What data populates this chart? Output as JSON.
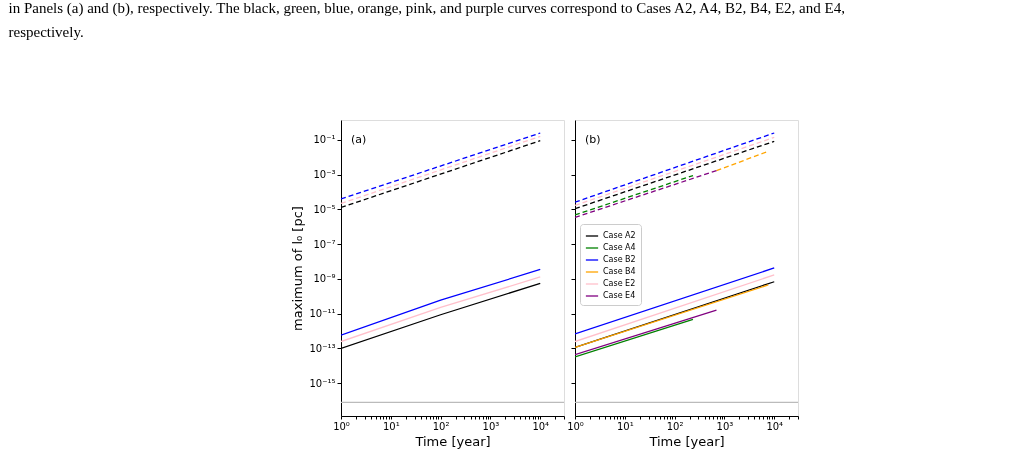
{
  "chart_data": [
    {
      "type": "line",
      "xlabel": "Time [year]",
      "ylabel": "maximum of l₀ [pc]",
      "log": "xy",
      "grid": false,
      "legend": false,
      "annotations": [
        "(a)",
        "in Panels (a) and (b), respectively.  The black, green, blue, orange, pink, and purple curves correspond to Cases A2, A4, B2, B4, E2, and E4,",
        "respectively."
      ],
      "xlim": [
        1,
        30000
      ],
      "ylim": [
        1.3e-17,
        1.4
      ],
      "xticks": [
        {
          "value": 1,
          "label": "10⁰"
        },
        {
          "value": 2,
          "label": null
        },
        {
          "value": 3,
          "label": null
        },
        {
          "value": 4,
          "label": null
        },
        {
          "value": 5,
          "label": null
        },
        {
          "value": 6,
          "label": null
        },
        {
          "value": 7,
          "label": null
        },
        {
          "value": 8,
          "label": null
        },
        {
          "value": 9,
          "label": null
        },
        {
          "value": 10,
          "label": "10¹"
        },
        {
          "value": 20,
          "label": null
        },
        {
          "value": 30,
          "label": null
        },
        {
          "value": 40,
          "label": null
        },
        {
          "value": 50,
          "label": null
        },
        {
          "value": 60,
          "label": null
        },
        {
          "value": 70,
          "label": null
        },
        {
          "value": 80,
          "label": null
        },
        {
          "value": 90,
          "label": null
        },
        {
          "value": 100,
          "label": "10²"
        },
        {
          "value": 200,
          "label": null
        },
        {
          "value": 300,
          "label": null
        },
        {
          "value": 400,
          "label": null
        },
        {
          "value": 500,
          "label": null
        },
        {
          "value": 600,
          "label": null
        },
        {
          "value": 700,
          "label": null
        },
        {
          "value": 800,
          "label": null
        },
        {
          "value": 900,
          "label": null
        },
        {
          "value": 1000,
          "label": "10³"
        },
        {
          "value": 2000,
          "label": null
        },
        {
          "value": 3000,
          "label": null
        },
        {
          "value": 4000,
          "label": null
        },
        {
          "value": 5000,
          "label": null
        },
        {
          "value": 6000,
          "label": null
        },
        {
          "value": 7000,
          "label": null
        },
        {
          "value": 8000,
          "label": null
        },
        {
          "value": 9000,
          "label": null
        },
        {
          "value": 10000,
          "label": "10⁴"
        },
        {
          "value": 20000,
          "label": null
        },
        {
          "value": 30000,
          "label": null
        }
      ],
      "yticks": [
        {
          "value": 0.1,
          "label": "10⁻¹"
        },
        {
          "value": 0.001,
          "label": "10⁻³"
        },
        {
          "value": 1e-05,
          "label": "10⁻⁵"
        },
        {
          "value": 1e-07,
          "label": "10⁻⁷"
        },
        {
          "value": 1e-09,
          "label": "10⁻⁹"
        },
        {
          "value": 1e-11,
          "label": "10⁻¹¹"
        },
        {
          "value": 1e-13,
          "label": "10⁻¹³"
        },
        {
          "value": 1e-15,
          "label": "10⁻¹⁵"
        }
      ],
      "ref_lines": [
        {
          "axis": "y",
          "value": 8e-17,
          "color": "#bbbbbb"
        }
      ],
      "series": [
        {
          "color": "#000000",
          "line_style": "solid",
          "x": [
            1,
            100,
            10000
          ],
          "values": [
            1e-13,
            8.7e-12,
            5.6e-10
          ]
        },
        {
          "color": "#ffc0cb",
          "line_style": "solid",
          "x": [
            1,
            100,
            10000
          ],
          "values": [
            2.5e-13,
            2.3e-11,
            1.3e-09
          ]
        },
        {
          "color": "#0000ff",
          "line_style": "solid",
          "x": [
            1,
            100,
            10000
          ],
          "values": [
            5.9e-13,
            6e-11,
            3.5e-09
          ]
        },
        {
          "color": "#000000",
          "line_style": "dashed",
          "x": [
            1,
            10000
          ],
          "values": [
            1.3e-05,
            0.09
          ]
        },
        {
          "color": "#ffc0cb",
          "line_style": "dashed",
          "x": [
            1,
            10000
          ],
          "values": [
            2.2e-05,
            0.16
          ]
        },
        {
          "color": "#0000ff",
          "line_style": "dashed",
          "x": [
            1,
            10000
          ],
          "values": [
            4e-05,
            0.25
          ]
        }
      ]
    },
    {
      "type": "line",
      "xlabel": "Time [year]",
      "log": "xy",
      "grid": false,
      "legend": "left",
      "tick_labels": "x",
      "annotations": [
        "(b)"
      ],
      "xlim": [
        1,
        30000
      ],
      "ylim": [
        1.3e-17,
        1.4
      ],
      "xticks": [
        {
          "value": 1,
          "label": "10⁰"
        },
        {
          "value": 2,
          "label": null
        },
        {
          "value": 3,
          "label": null
        },
        {
          "value": 4,
          "label": null
        },
        {
          "value": 5,
          "label": null
        },
        {
          "value": 6,
          "label": null
        },
        {
          "value": 7,
          "label": null
        },
        {
          "value": 8,
          "label": null
        },
        {
          "value": 9,
          "label": null
        },
        {
          "value": 10,
          "label": "10¹"
        },
        {
          "value": 20,
          "label": null
        },
        {
          "value": 30,
          "label": null
        },
        {
          "value": 40,
          "label": null
        },
        {
          "value": 50,
          "label": null
        },
        {
          "value": 60,
          "label": null
        },
        {
          "value": 70,
          "label": null
        },
        {
          "value": 80,
          "label": null
        },
        {
          "value": 90,
          "label": null
        },
        {
          "value": 100,
          "label": "10²"
        },
        {
          "value": 200,
          "label": null
        },
        {
          "value": 300,
          "label": null
        },
        {
          "value": 400,
          "label": null
        },
        {
          "value": 500,
          "label": null
        },
        {
          "value": 600,
          "label": null
        },
        {
          "value": 700,
          "label": null
        },
        {
          "value": 800,
          "label": null
        },
        {
          "value": 900,
          "label": null
        },
        {
          "value": 1000,
          "label": "10³"
        },
        {
          "value": 2000,
          "label": null
        },
        {
          "value": 3000,
          "label": null
        },
        {
          "value": 4000,
          "label": null
        },
        {
          "value": 5000,
          "label": null
        },
        {
          "value": 6000,
          "label": null
        },
        {
          "value": 7000,
          "label": null
        },
        {
          "value": 8000,
          "label": null
        },
        {
          "value": 9000,
          "label": null
        },
        {
          "value": 10000,
          "label": "10⁴"
        },
        {
          "value": 20000,
          "label": null
        },
        {
          "value": 30000,
          "label": null
        }
      ],
      "yticks": [
        {
          "value": 0.1,
          "label": null
        },
        {
          "value": 0.001,
          "label": null
        },
        {
          "value": 1e-05,
          "label": null
        },
        {
          "value": 1e-07,
          "label": null
        },
        {
          "value": 1e-09,
          "label": null
        },
        {
          "value": 1e-11,
          "label": null
        },
        {
          "value": 1e-13,
          "label": null
        },
        {
          "value": 1e-15,
          "label": null
        }
      ],
      "ref_lines": [
        {
          "axis": "y",
          "value": 8e-17,
          "color": "#bbbbbb"
        }
      ],
      "series": [
        {
          "name": "Case A2",
          "color": "#000000",
          "line_style": "solid",
          "x": [
            1,
            10000
          ],
          "values": [
            1.15e-13,
            6.9e-10
          ]
        },
        {
          "name": "Case A4",
          "color": "#008000",
          "line_style": "solid",
          "x": [
            1,
            234
          ],
          "values": [
            3.3e-14,
            4.7e-12
          ]
        },
        {
          "name": "Case B2",
          "color": "#0000ff",
          "line_style": "solid",
          "x": [
            1,
            10000
          ],
          "values": [
            6.8e-13,
            4.3e-09
          ]
        },
        {
          "name": "Case B4",
          "color": "#ffa500",
          "line_style": "solid",
          "x": [
            1,
            7600
          ],
          "values": [
            1.15e-13,
            4.5e-10
          ]
        },
        {
          "name": "Case E2",
          "color": "#ffc0cb",
          "line_style": "solid",
          "x": [
            1,
            10000
          ],
          "values": [
            2.5e-13,
            1.7e-09
          ]
        },
        {
          "name": "Case E4",
          "color": "#800080",
          "line_style": "solid",
          "x": [
            1,
            692
          ],
          "values": [
            4.4e-14,
            1.6e-11
          ]
        },
        {
          "color": "#000000",
          "line_style": "dashed",
          "x": [
            1,
            10000
          ],
          "values": [
            1.1e-05,
            0.083
          ]
        },
        {
          "color": "#0000ff",
          "line_style": "dashed",
          "x": [
            1,
            10000
          ],
          "values": [
            2.6e-05,
            0.25
          ]
        },
        {
          "color": "#ffc0cb",
          "line_style": "dashed",
          "x": [
            1,
            10000
          ],
          "values": [
            1.7e-05,
            0.14
          ]
        },
        {
          "color": "#008000",
          "line_style": "dashed",
          "x": [
            1,
            234
          ],
          "values": [
            4.8e-06,
            0.00089
          ]
        },
        {
          "color": "#ffa500",
          "line_style": "dashed",
          "x": [
            692,
            7244
          ],
          "values": [
            0.0017,
            0.021
          ]
        },
        {
          "color": "#800080",
          "line_style": "dashed",
          "x": [
            1,
            692
          ],
          "values": [
            3.5e-06,
            0.0017
          ]
        }
      ]
    }
  ]
}
